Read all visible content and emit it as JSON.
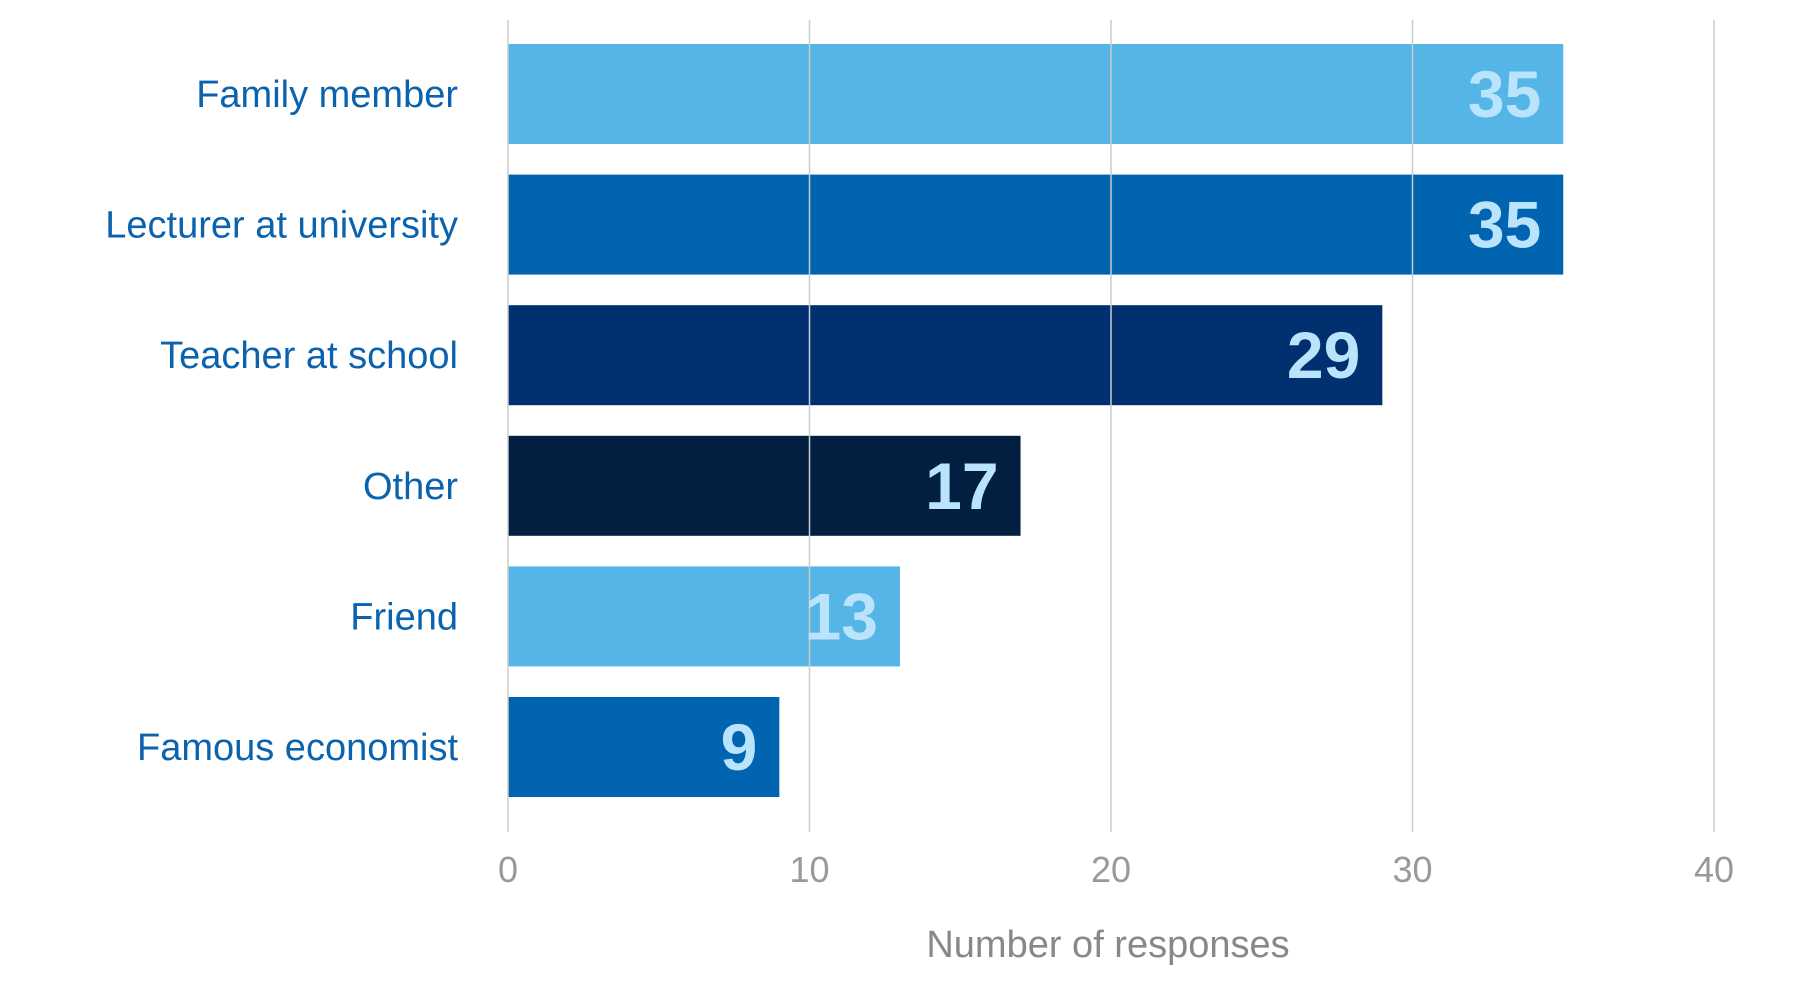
{
  "chart_data": {
    "type": "bar",
    "orientation": "horizontal",
    "title": "",
    "xlabel": "Number of responses",
    "ylabel": "",
    "categories": [
      "Family member",
      "Lecturer at university",
      "Teacher at school",
      "Other",
      "Friend",
      "Famous economist"
    ],
    "values": [
      35,
      35,
      29,
      17,
      13,
      9
    ],
    "data_labels": [
      "35",
      "35",
      "29",
      "17",
      "13",
      "9"
    ],
    "xlim": [
      0,
      40
    ],
    "xticks": [
      "0",
      "10",
      "20",
      "30",
      "40"
    ],
    "grid": "vertical",
    "legend": "none",
    "bar_colors": [
      "#55b5e6",
      "#0064b0",
      "#003070",
      "#021f42",
      "#55b5e6",
      "#0064b0"
    ],
    "colors": {
      "category_label": "#0b62ad",
      "data_label": "#b9e4fb",
      "tick_label": "#999999",
      "axis_title": "#888888",
      "gridline": "#cccccc"
    }
  }
}
